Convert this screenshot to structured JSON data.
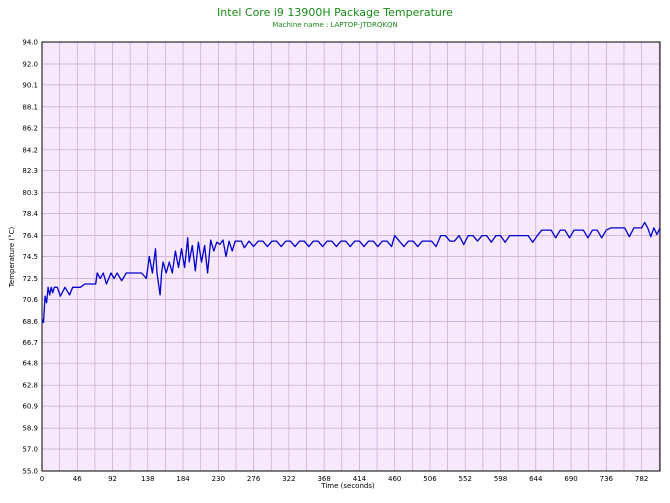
{
  "chart_data": {
    "type": "line",
    "title": "Intel Core i9 13900H Package Temperature",
    "subtitle": "Machine name : LAPTOP-JTDRQKQN",
    "xlabel": "Time (seconds)",
    "ylabel": "Temperature (°C)",
    "xlim": [
      0,
      806
    ],
    "ylim": [
      55.0,
      94.0
    ],
    "x_ticks": [
      "0",
      "46",
      "92",
      "138",
      "184",
      "230",
      "276",
      "322",
      "368",
      "414",
      "460",
      "506",
      "552",
      "598",
      "644",
      "690",
      "736",
      "782"
    ],
    "y_ticks": [
      "55.0",
      "57.0",
      "58.9",
      "60.9",
      "62.8",
      "64.8",
      "66.7",
      "68.6",
      "70.6",
      "72.5",
      "74.5",
      "76.4",
      "78.4",
      "80.3",
      "82.3",
      "84.2",
      "86.2",
      "88.1",
      "90.1",
      "92.0",
      "94.0"
    ],
    "grid": true,
    "colors": {
      "line": "#0000cc",
      "plot_bg": "#f8e8fc",
      "grid": "#c8a8d0",
      "title": "#1a8a1a"
    },
    "series": [
      {
        "values_description": "sampled",
        "x": [
          0,
          2,
          4,
          6,
          8,
          10,
          12,
          14,
          16,
          20,
          24,
          30,
          36,
          40,
          46,
          50,
          56,
          60,
          66,
          70,
          72,
          76,
          80,
          84,
          90,
          94,
          98,
          104,
          110,
          116,
          120,
          124,
          130,
          136,
          140,
          144,
          148,
          150,
          154,
          156,
          158,
          162,
          166,
          170,
          174,
          178,
          182,
          186,
          190,
          192,
          196,
          200,
          204,
          208,
          212,
          216,
          220,
          224,
          228,
          232,
          236,
          240,
          244,
          248,
          252,
          256,
          260,
          264,
          270,
          276,
          282,
          288,
          294,
          300,
          306,
          312,
          318,
          324,
          330,
          336,
          342,
          348,
          354,
          360,
          366,
          372,
          378,
          384,
          390,
          396,
          402,
          408,
          414,
          420,
          426,
          432,
          438,
          444,
          450,
          456,
          460,
          466,
          472,
          478,
          484,
          490,
          496,
          502,
          508,
          514,
          520,
          526,
          532,
          538,
          544,
          550,
          556,
          562,
          568,
          574,
          580,
          586,
          592,
          598,
          604,
          610,
          616,
          622,
          628,
          634,
          640,
          646,
          652,
          658,
          664,
          670,
          676,
          682,
          688,
          694,
          700,
          706,
          712,
          718,
          724,
          730,
          736,
          742,
          748,
          754,
          760,
          766,
          772,
          778,
          782,
          786,
          790,
          794,
          798,
          802,
          806
        ],
        "y": [
          68.8,
          68.5,
          70.9,
          70.3,
          71.7,
          71.0,
          71.7,
          71.2,
          71.7,
          71.7,
          70.9,
          71.7,
          71.0,
          71.7,
          71.7,
          71.7,
          72.0,
          72.0,
          72.0,
          72.0,
          73.0,
          72.5,
          73.0,
          72.0,
          73.0,
          72.5,
          73.0,
          72.3,
          73.0,
          73.0,
          73.0,
          73.0,
          73.0,
          72.5,
          74.5,
          73.0,
          75.2,
          73.0,
          71.0,
          73.0,
          74.0,
          73.0,
          74.0,
          73.0,
          75.0,
          73.5,
          75.2,
          73.5,
          76.2,
          74.0,
          75.5,
          73.2,
          75.8,
          74.0,
          75.5,
          73.0,
          76.0,
          75.0,
          75.8,
          75.6,
          76.0,
          74.5,
          75.9,
          75.0,
          75.9,
          75.9,
          75.9,
          75.3,
          75.9,
          75.4,
          75.9,
          75.9,
          75.4,
          75.9,
          75.9,
          75.4,
          75.9,
          75.9,
          75.4,
          75.9,
          75.9,
          75.4,
          75.9,
          75.9,
          75.4,
          75.9,
          75.9,
          75.4,
          75.9,
          75.9,
          75.4,
          75.9,
          75.9,
          75.4,
          75.9,
          75.9,
          75.4,
          75.9,
          75.9,
          75.4,
          76.4,
          75.9,
          75.4,
          75.9,
          75.9,
          75.4,
          75.9,
          75.9,
          75.9,
          75.4,
          76.4,
          76.4,
          75.9,
          75.9,
          76.4,
          75.6,
          76.4,
          76.4,
          75.9,
          76.4,
          76.4,
          75.8,
          76.4,
          76.4,
          75.8,
          76.4,
          76.4,
          76.4,
          76.4,
          76.4,
          75.8,
          76.4,
          76.9,
          76.9,
          76.9,
          76.2,
          76.9,
          76.9,
          76.2,
          76.9,
          76.9,
          76.9,
          76.2,
          76.9,
          76.9,
          76.2,
          76.9,
          77.1,
          77.1,
          77.1,
          77.1,
          76.3,
          77.1,
          77.1,
          77.1,
          77.6,
          77.1,
          76.3,
          77.1,
          76.5,
          77.1
        ]
      }
    ]
  }
}
